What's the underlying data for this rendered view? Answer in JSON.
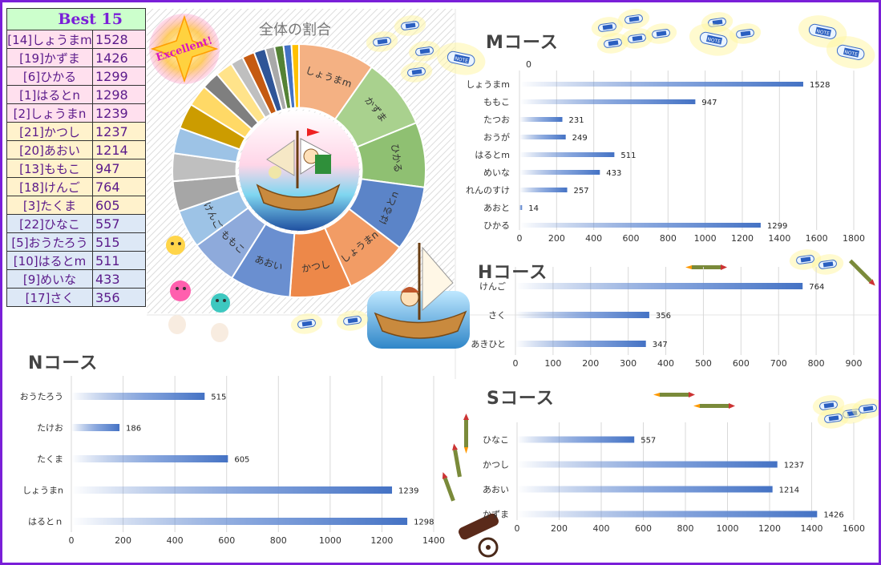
{
  "best_table": {
    "title": "Best 15",
    "rows": [
      {
        "name": "[14]しょうまm",
        "score": "1528",
        "tone": "pink"
      },
      {
        "name": "[19]かずま",
        "score": "1426",
        "tone": "pink"
      },
      {
        "name": "[6]ひかる",
        "score": "1299",
        "tone": "pink"
      },
      {
        "name": "[1]はるとn",
        "score": "1298",
        "tone": "pink"
      },
      {
        "name": "[2]しょうまn",
        "score": "1239",
        "tone": "pink"
      },
      {
        "name": "[21]かつし",
        "score": "1237",
        "tone": "yellow"
      },
      {
        "name": "[20]あおい",
        "score": "1214",
        "tone": "yellow"
      },
      {
        "name": "[13]ももこ",
        "score": "947",
        "tone": "yellow"
      },
      {
        "name": "[18]けんご",
        "score": "764",
        "tone": "yellow"
      },
      {
        "name": "[3]たくま",
        "score": "605",
        "tone": "yellow"
      },
      {
        "name": "[22]ひなこ",
        "score": "557",
        "tone": "blue"
      },
      {
        "name": "[5]おうたろう",
        "score": "515",
        "tone": "blue"
      },
      {
        "name": "[10]はるとm",
        "score": "511",
        "tone": "blue"
      },
      {
        "name": "[9]めいな",
        "score": "433",
        "tone": "blue"
      },
      {
        "name": "[17]さく",
        "score": "356",
        "tone": "blue"
      }
    ]
  },
  "stickers": {
    "excellent": "Excellent!",
    "note": "NOTE"
  },
  "colors": {
    "frame": "#7a1fd8",
    "bar": "#4472c4",
    "grid": "#d9d9d9"
  },
  "chart_data": [
    {
      "id": "pie",
      "type": "pie",
      "title": "全体の割合",
      "slices": [
        {
          "label": "しょうまm",
          "value": 1528,
          "color": "#f4b183"
        },
        {
          "label": "かずま",
          "value": 1426,
          "color": "#a9d18e"
        },
        {
          "label": "ひかる",
          "value": 1299,
          "color": "#8fc072"
        },
        {
          "label": "はるとn",
          "value": 1298,
          "color": "#5b84c8"
        },
        {
          "label": "しょうまn",
          "value": 1239,
          "color": "#f29c65"
        },
        {
          "label": "かつし",
          "value": 1237,
          "color": "#ed8849"
        },
        {
          "label": "あおい",
          "value": 1214,
          "color": "#6a8fd0"
        },
        {
          "label": "ももこ",
          "value": 947,
          "color": "#8eaadb"
        },
        {
          "label": "けんご",
          "value": 764,
          "color": "#9dc3e6"
        },
        {
          "label": "",
          "value": 605,
          "color": "#a6a6a6"
        },
        {
          "label": "",
          "value": 557,
          "color": "#bfbfbf"
        },
        {
          "label": "",
          "value": 515,
          "color": "#9dc3e6"
        },
        {
          "label": "",
          "value": 511,
          "color": "#cc9c00"
        },
        {
          "label": "",
          "value": 433,
          "color": "#ffd966"
        },
        {
          "label": "",
          "value": 356,
          "color": "#7f7f7f"
        },
        {
          "label": "",
          "value": 347,
          "color": "#ffe38a"
        },
        {
          "label": "",
          "value": 257,
          "color": "#bfbfbf"
        },
        {
          "label": "",
          "value": 249,
          "color": "#c55a11"
        },
        {
          "label": "",
          "value": 231,
          "color": "#2f5597"
        },
        {
          "label": "",
          "value": 186,
          "color": "#a9a9a9"
        },
        {
          "label": "",
          "value": 180,
          "color": "#548235"
        },
        {
          "label": "",
          "value": 160,
          "color": "#4472c4"
        },
        {
          "label": "",
          "value": 150,
          "color": "#ffc000"
        }
      ]
    },
    {
      "id": "m",
      "type": "bar",
      "title": "Mコース",
      "extra_label": "0",
      "categories": [
        "しょうまm",
        "ももこ",
        "たつお",
        "おうが",
        "はるとm",
        "めいな",
        "れんのすけ",
        "あおと",
        "ひかる"
      ],
      "values": [
        1528,
        947,
        231,
        249,
        511,
        433,
        257,
        14,
        1299
      ],
      "xlim": [
        0,
        1800
      ],
      "xticks": [
        0,
        200,
        400,
        600,
        800,
        1000,
        1200,
        1400,
        1600,
        1800
      ]
    },
    {
      "id": "h",
      "type": "bar",
      "title": "Hコース",
      "categories": [
        "けんご",
        "さく",
        "あきひと"
      ],
      "values": [
        764,
        356,
        347
      ],
      "xlim": [
        0,
        900
      ],
      "xticks": [
        0,
        100,
        200,
        300,
        400,
        500,
        600,
        700,
        800,
        900
      ]
    },
    {
      "id": "n",
      "type": "bar",
      "title": "Nコース",
      "categories": [
        "おうたろう",
        "たけお",
        "たくま",
        "しょうまn",
        "はるとｎ"
      ],
      "values": [
        515,
        186,
        605,
        1239,
        1298
      ],
      "xlim": [
        0,
        1400
      ],
      "xticks": [
        0,
        200,
        400,
        600,
        800,
        1000,
        1200,
        1400
      ]
    },
    {
      "id": "s",
      "type": "bar",
      "title": "Sコース",
      "categories": [
        "ひなこ",
        "かつし",
        "あおい",
        "かずま"
      ],
      "values": [
        557,
        1237,
        1214,
        1426
      ],
      "xlim": [
        0,
        1600
      ],
      "xticks": [
        0,
        200,
        400,
        600,
        800,
        1000,
        1200,
        1400,
        1600
      ]
    }
  ]
}
